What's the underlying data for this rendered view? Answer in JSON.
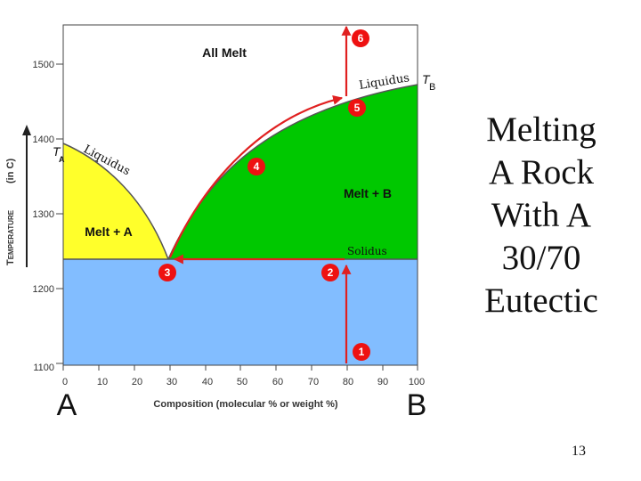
{
  "slide": {
    "title": "Melting\nA Rock\nWith A\n30/70\nEutectic",
    "page_number": "13"
  },
  "diagram": {
    "ylabel_main": "Temperature",
    "ylabel_unit": "(in C)",
    "xlabel": "Composition  (molecular %  or  weight %)",
    "y_ticks": [
      "1500",
      "1400",
      "1300",
      "1200",
      "1100"
    ],
    "x_ticks": [
      "0",
      "10",
      "20",
      "30",
      "40",
      "50",
      "60",
      "70",
      "80",
      "90",
      "100"
    ],
    "end_member_a": "A",
    "end_member_b": "B",
    "ta_label": "T",
    "ta_sub": "A",
    "tb_label": "T",
    "tb_sub": "B",
    "region_all_melt": "All Melt",
    "region_melt_a": "Melt + A",
    "region_melt_b": "Melt + B",
    "liquidus_left": "Liquidus",
    "liquidus_right": "Liquidus",
    "solidus": "Solidus",
    "steps": [
      "1",
      "2",
      "3",
      "4",
      "5",
      "6"
    ],
    "colors": {
      "solid_region": "#82bdff",
      "melt_a_region": "#ffff2b",
      "melt_b_region": "#00c800",
      "arrow": "#e02020",
      "marker": "#ee1111"
    }
  }
}
